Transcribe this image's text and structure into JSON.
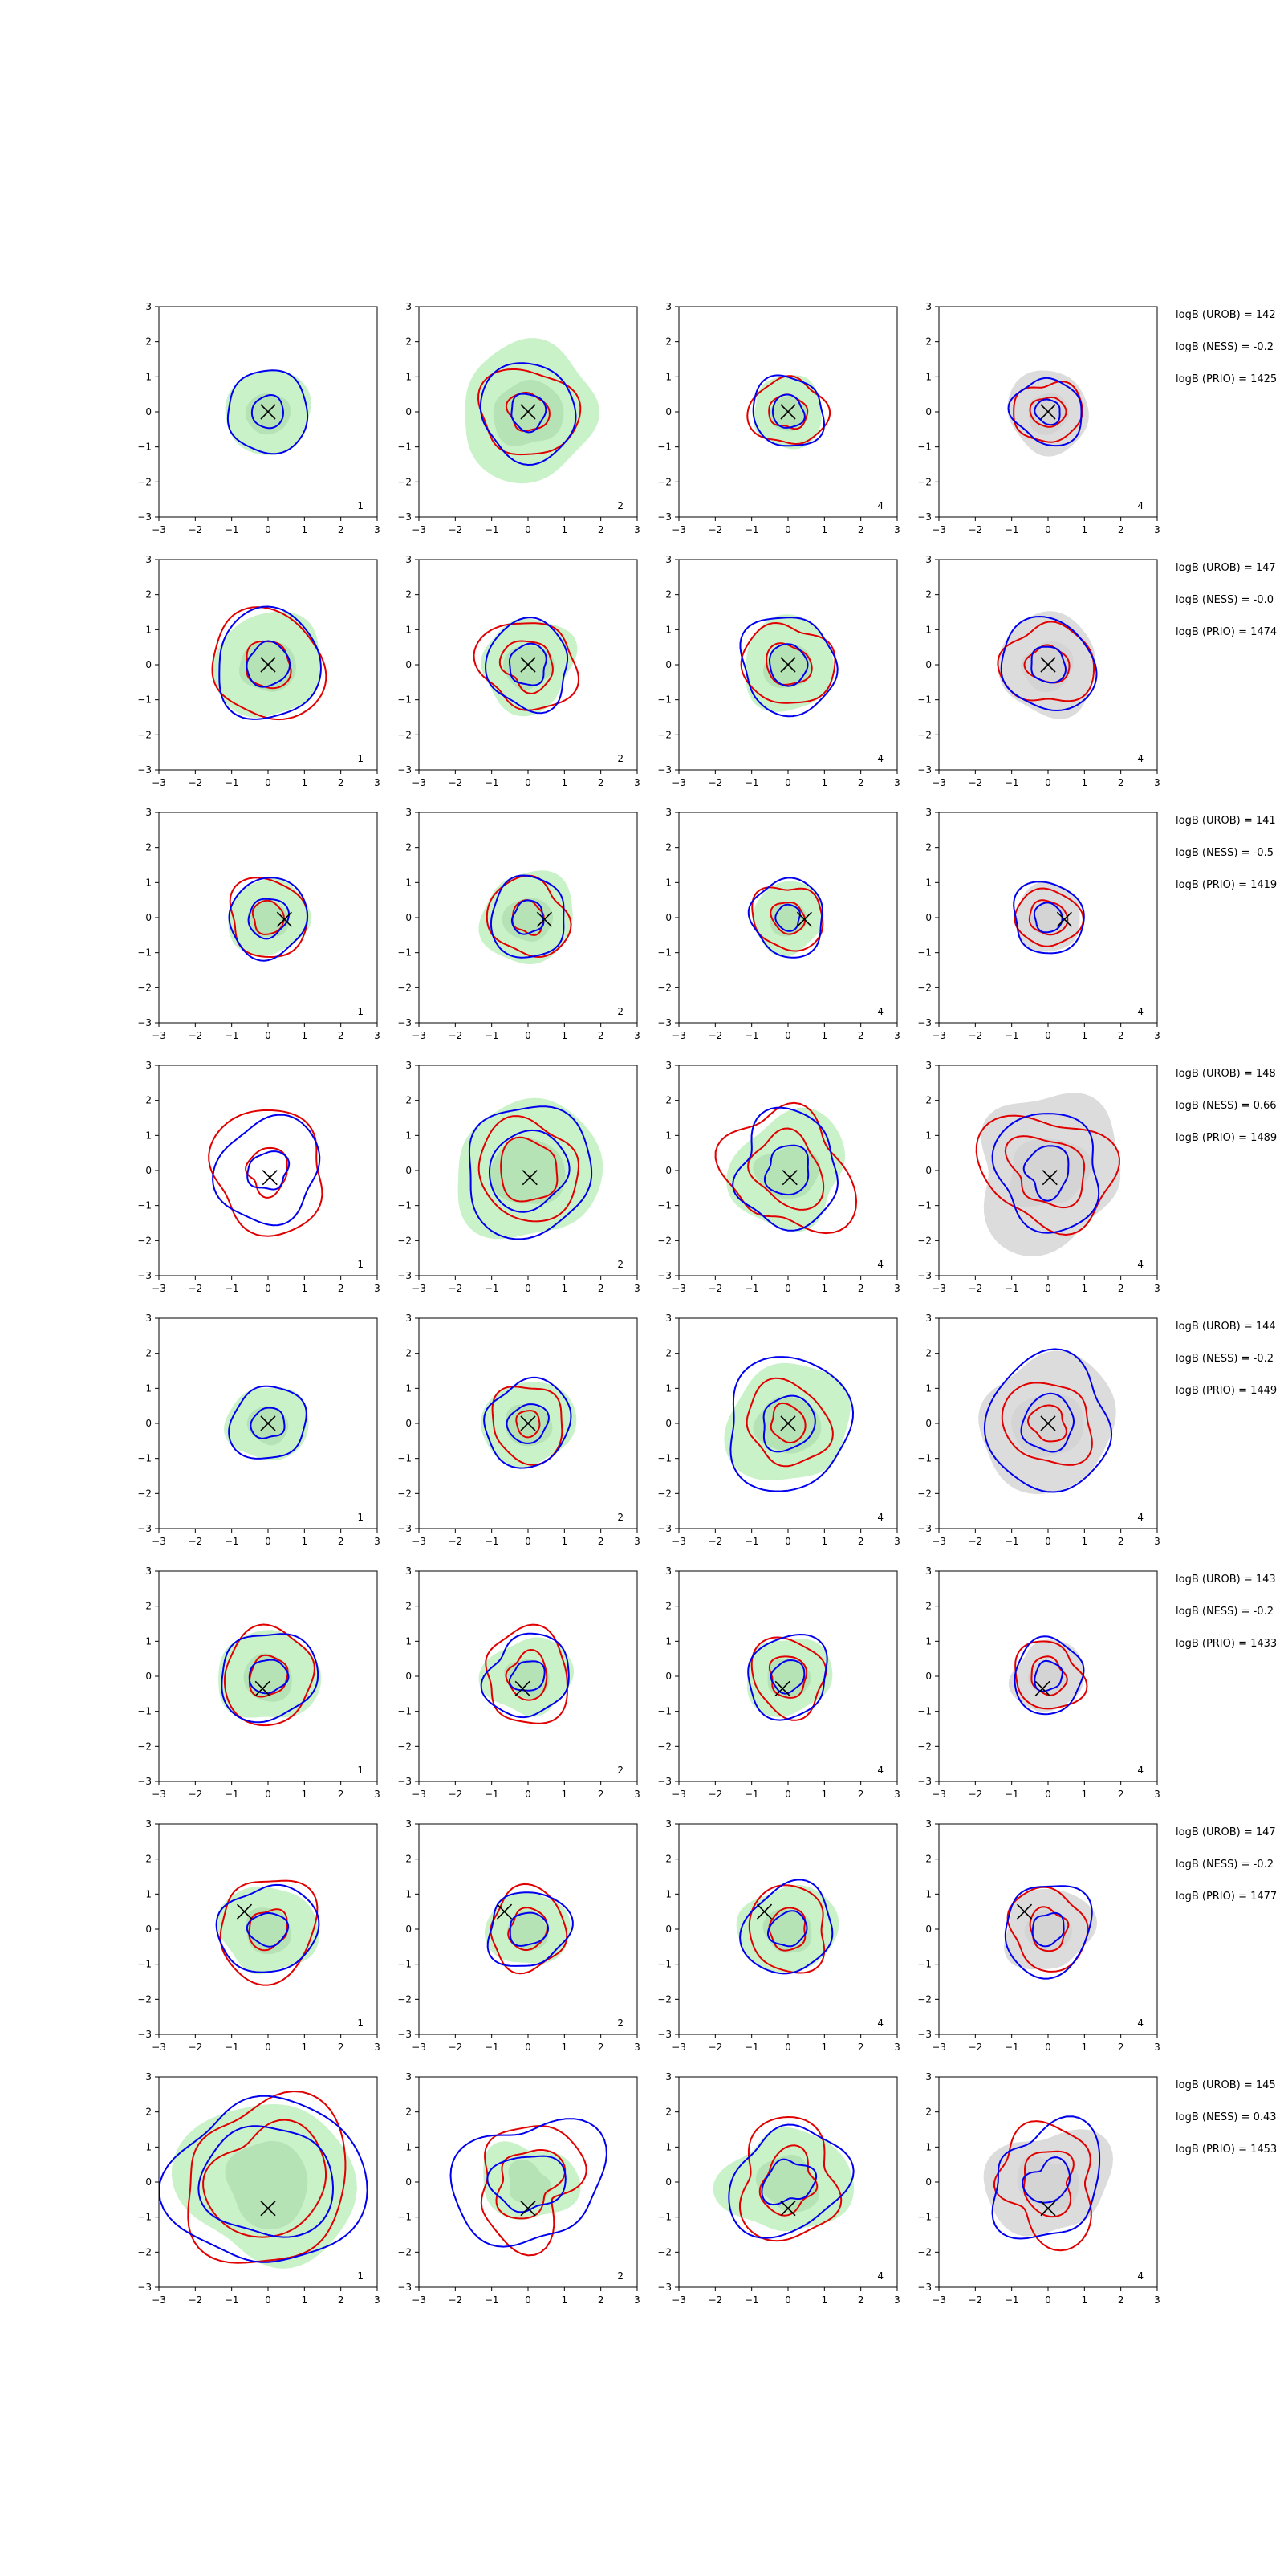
{
  "chart_data": {
    "type": "contour",
    "grid": {
      "rows": 8,
      "cols": 4
    },
    "xlim": [
      -3,
      3
    ],
    "ylim": [
      -3,
      3
    ],
    "ticks": [
      -3,
      -2,
      -1,
      0,
      1,
      2,
      3
    ],
    "colors": {
      "blue": "#0000ee",
      "red": "#e00000",
      "green_fill": "#c9f2c9",
      "green_inner": "#a9d8a9",
      "gray_fill": "#dcdcdc",
      "frame": "#000000"
    },
    "column_numbers": [
      "1",
      "2",
      "4",
      "4"
    ],
    "column_fill": [
      "green",
      "green",
      "green",
      "gray"
    ],
    "rows": [
      {
        "marker": [
          0,
          0
        ],
        "annotations": [
          "logB (UROB) = 142",
          "logB (NESS) = -0.2",
          "logB (PRIO) = 1425"
        ],
        "panels": [
          {
            "blue": [
              1.15,
              0.45
            ],
            "red": [],
            "fill": 1.2,
            "wobble": 0.06
          },
          {
            "blue": [
              1.35,
              0.5
            ],
            "red": [
              1.3,
              0.55
            ],
            "fill": 1.9,
            "wobble": 0.1
          },
          {
            "blue": [
              1.0,
              0.45
            ],
            "red": [
              1.0,
              0.5
            ],
            "fill": 1.0,
            "wobble": 0.1
          },
          {
            "blue": [
              0.95,
              0.35
            ],
            "red": [
              0.9,
              0.45
            ],
            "fill": 1.15,
            "wobble": 0.1
          }
        ]
      },
      {
        "marker": [
          0,
          0
        ],
        "annotations": [
          "logB (UROB) = 147",
          "logB (NESS) = -0.0",
          "logB (PRIO) = 1474"
        ],
        "panels": [
          {
            "blue": [
              1.5,
              0.6
            ],
            "red": [
              1.55,
              0.65
            ],
            "fill": 1.5,
            "wobble": 0.09
          },
          {
            "blue": [
              1.2,
              0.55
            ],
            "red": [
              1.3,
              0.7
            ],
            "fill": 1.3,
            "wobble": 0.12
          },
          {
            "blue": [
              1.35,
              0.55
            ],
            "red": [
              1.2,
              0.6
            ],
            "fill": 1.3,
            "wobble": 0.1
          },
          {
            "blue": [
              1.3,
              0.5
            ],
            "red": [
              1.2,
              0.55
            ],
            "fill": 1.4,
            "wobble": 0.1
          }
        ]
      },
      {
        "marker": [
          0.45,
          -0.05
        ],
        "annotations": [
          "logB (UROB) = 141",
          "logB (NESS) = -0.5",
          "logB (PRIO) = 1419"
        ],
        "panels": [
          {
            "blue": [
              1.1,
              0.55
            ],
            "red": [
              1.1,
              0.45
            ],
            "fill": 1.1,
            "wobble": 0.08
          },
          {
            "blue": [
              1.1,
              0.45
            ],
            "red": [
              1.1,
              0.45
            ],
            "fill": 1.3,
            "wobble": 0.1
          },
          {
            "blue": [
              1.05,
              0.35
            ],
            "red": [
              0.95,
              0.45
            ],
            "fill": 1.0,
            "wobble": 0.09
          },
          {
            "blue": [
              1.0,
              0.4
            ],
            "red": [
              0.85,
              0.5
            ],
            "fill": 0.95,
            "wobble": 0.08
          }
        ]
      },
      {
        "marker": [
          0.05,
          -0.2
        ],
        "annotations": [
          "logB (UROB) = 148",
          "logB (NESS) = 0.66",
          "logB (PRIO) = 1489"
        ],
        "panels": [
          {
            "blue": [
              1.45,
              0.55
            ],
            "red": [
              1.65,
              0.6
            ],
            "fill": 0,
            "wobble": 0.12
          },
          {
            "blue": [
              1.8,
              1.1
            ],
            "red": [
              1.4,
              0.85
            ],
            "fill": 2.0,
            "wobble": 0.08
          },
          {
            "blue": [
              1.5,
              0.65
            ],
            "red": [
              1.7,
              1.0
            ],
            "fill": 1.6,
            "wobble": 0.16
          },
          {
            "blue": [
              1.55,
              0.65
            ],
            "red": [
              1.7,
              1.0
            ],
            "fill": 2.1,
            "wobble": 0.16
          }
        ]
      },
      {
        "marker": [
          0,
          0
        ],
        "annotations": [
          "logB (UROB) = 144",
          "logB (NESS) = -0.2",
          "logB (PRIO) = 1449"
        ],
        "panels": [
          {
            "blue": [
              1.05,
              0.45
            ],
            "red": [],
            "fill": 1.1,
            "wobble": 0.08
          },
          {
            "blue": [
              1.2,
              0.55
            ],
            "red": [
              1.05,
              0.35
            ],
            "fill": 1.25,
            "wobble": 0.09
          },
          {
            "blue": [
              1.8,
              0.75
            ],
            "red": [
              1.15,
              0.5
            ],
            "fill": 1.7,
            "wobble": 0.1
          },
          {
            "blue": [
              1.8,
              0.75
            ],
            "red": [
              1.2,
              0.5
            ],
            "fill": 1.9,
            "wobble": 0.1
          }
        ]
      },
      {
        "marker": [
          -0.15,
          -0.35
        ],
        "annotations": [
          "logB (UROB) = 143",
          "logB (NESS) = -0.2",
          "logB (PRIO) = 1433"
        ],
        "panels": [
          {
            "blue": [
              1.3,
              0.5
            ],
            "red": [
              1.3,
              0.55
            ],
            "fill": 1.35,
            "wobble": 0.08
          },
          {
            "blue": [
              1.15,
              0.45
            ],
            "red": [
              1.25,
              0.6
            ],
            "fill": 1.15,
            "wobble": 0.12
          },
          {
            "blue": [
              1.15,
              0.45
            ],
            "red": [
              1.05,
              0.55
            ],
            "fill": 1.15,
            "wobble": 0.1
          },
          {
            "blue": [
              1.0,
              0.4
            ],
            "red": [
              0.95,
              0.5
            ],
            "fill": 1.0,
            "wobble": 0.1
          }
        ]
      },
      {
        "marker": [
          -0.65,
          0.5
        ],
        "annotations": [
          "logB (UROB) = 147",
          "logB (NESS) = -0.2",
          "logB (PRIO) = 1477"
        ],
        "panels": [
          {
            "blue": [
              1.3,
              0.5
            ],
            "red": [
              1.4,
              0.55
            ],
            "fill": 1.3,
            "wobble": 0.09
          },
          {
            "blue": [
              1.1,
              0.5
            ],
            "red": [
              1.1,
              0.55
            ],
            "fill": 1.1,
            "wobble": 0.09
          },
          {
            "blue": [
              1.25,
              0.5
            ],
            "red": [
              1.15,
              0.55
            ],
            "fill": 1.3,
            "wobble": 0.1
          },
          {
            "blue": [
              1.25,
              0.45
            ],
            "red": [
              1.1,
              0.55
            ],
            "fill": 1.2,
            "wobble": 0.1
          }
        ]
      },
      {
        "marker": [
          0,
          -0.75
        ],
        "annotations": [
          "logB (UROB) = 145",
          "logB (NESS) = 0.43",
          "logB (PRIO) = 1453"
        ],
        "panels": [
          {
            "blue": [
              2.5,
              1.7
            ],
            "red": [
              2.3,
              1.6
            ],
            "fill": 2.35,
            "wobble": 0.1
          },
          {
            "blue": [
              1.9,
              0.9
            ],
            "red": [
              1.5,
              0.9
            ],
            "fill": 1.2,
            "wobble": 0.18
          },
          {
            "blue": [
              1.55,
              0.65
            ],
            "red": [
              1.5,
              0.8
            ],
            "fill": 1.6,
            "wobble": 0.16
          },
          {
            "blue": [
              1.55,
              0.6
            ],
            "red": [
              1.45,
              0.8
            ],
            "fill": 1.6,
            "wobble": 0.18
          }
        ]
      }
    ]
  }
}
